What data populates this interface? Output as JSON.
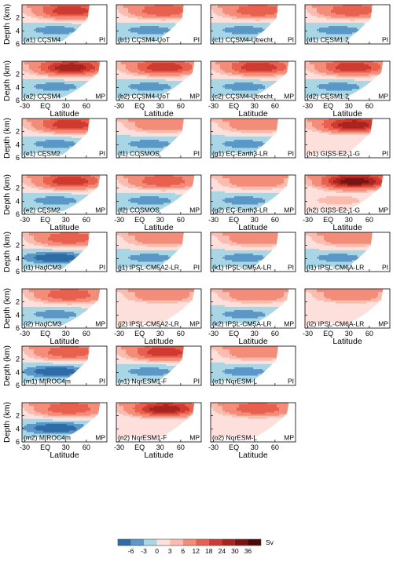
{
  "chart_data": {
    "type": "heatmap",
    "axis": {
      "ylabel": "Depth (km)",
      "xlabel": "Latitude",
      "xticks": [
        "-30",
        "EQ",
        "30",
        "60"
      ],
      "yticks": [
        "2",
        "4",
        "6"
      ],
      "xlim": [
        -34,
        90
      ],
      "ylim": [
        0,
        6
      ]
    },
    "colorbar": {
      "ticks": [
        "-6",
        "-3",
        "0",
        "3",
        "6",
        "12",
        "18",
        "24",
        "30",
        "36"
      ],
      "unit": "Sv",
      "colors": [
        "#2e6ca7",
        "#5b97c7",
        "#a9d6e5",
        "#fde0dc",
        "#fbbcb0",
        "#f48c7a",
        "#e8604e",
        "#cf3b30",
        "#a8241f",
        "#7a1414",
        "#4d0808"
      ]
    },
    "panel_rows": [
      {
        "panels": [
          {
            "label": "(a1) CCSM4",
            "tag": "PI",
            "peak": 24,
            "deep": -3,
            "maxLat": 65
          },
          {
            "label": "(b1) CCSM4-UoT",
            "tag": "PI",
            "peak": 18,
            "deep": -3,
            "maxLat": 65
          },
          {
            "label": "(c1) CCSM4-Utrecht",
            "tag": "PI",
            "peak": 18,
            "deep": -3,
            "maxLat": 65
          },
          {
            "label": "(d1) CESM1.2",
            "tag": "PI",
            "peak": 18,
            "deep": -3,
            "maxLat": 65
          }
        ]
      },
      {
        "panels": [
          {
            "label": "(a2) CCSM4",
            "tag": "MP",
            "peak": 30,
            "deep": -3,
            "maxLat": 80
          },
          {
            "label": "(b2) CCSM4-UoT",
            "tag": "MP",
            "peak": 24,
            "deep": -3,
            "maxLat": 80
          },
          {
            "label": "(c2) CCSM4-Utrecht",
            "tag": "MP",
            "peak": 24,
            "deep": -3,
            "maxLat": 80
          },
          {
            "label": "(d2) CESM1.2",
            "tag": "MP",
            "peak": 24,
            "deep": -3,
            "maxLat": 80
          }
        ]
      },
      {
        "panels": [
          {
            "label": "(e1) CESM2",
            "tag": "PI",
            "peak": 24,
            "deep": -3,
            "maxLat": 65
          },
          {
            "label": "(f1) COSMOS",
            "tag": "PI",
            "peak": 12,
            "deep": -3,
            "maxLat": 65
          },
          {
            "label": "(g1) EC-Earth3-LR",
            "tag": "PI",
            "peak": 12,
            "deep": -3,
            "maxLat": 65
          },
          {
            "label": "(h1) GISS-E2-1-G",
            "tag": "PI",
            "peak": 30,
            "deep": 0,
            "maxLat": 65
          }
        ]
      },
      {
        "panels": [
          {
            "label": "(e2) CESM2",
            "tag": "MP",
            "peak": 24,
            "deep": -3,
            "maxLat": 80
          },
          {
            "label": "(f2) COSMOS",
            "tag": "MP",
            "peak": 18,
            "deep": -3,
            "maxLat": 80
          },
          {
            "label": "(g2) EC-Earth3-LR",
            "tag": "MP",
            "peak": 12,
            "deep": -3,
            "maxLat": 80
          },
          {
            "label": "(h2) GISS-E2-1-G",
            "tag": "MP",
            "peak": 36,
            "deep": 3,
            "maxLat": 80
          }
        ]
      },
      {
        "panels": [
          {
            "label": "(i1) HadCM3",
            "tag": "PI",
            "peak": 18,
            "deep": -6,
            "maxLat": 65
          },
          {
            "label": "(j1) IPSL-CM5A2-LR",
            "tag": "PI",
            "peak": 12,
            "deep": -3,
            "maxLat": 65
          },
          {
            "label": "(k1) IPSL-CM5A-LR",
            "tag": "PI",
            "peak": 12,
            "deep": -3,
            "maxLat": 65
          },
          {
            "label": "(l1) IPSL-CM6A-LR",
            "tag": "PI",
            "peak": 12,
            "deep": -3,
            "maxLat": 65
          }
        ]
      },
      {
        "panels": [
          {
            "label": "(i2) HadCM3",
            "tag": "MP",
            "peak": 18,
            "deep": -3,
            "maxLat": 80
          },
          {
            "label": "(j2) IPSL-CM5A2-LR",
            "tag": "MP",
            "peak": 12,
            "deep": 0,
            "maxLat": 80
          },
          {
            "label": "(k2) IPSL-CM5A-LR",
            "tag": "MP",
            "peak": 12,
            "deep": -3,
            "maxLat": 80
          },
          {
            "label": "(l2) IPSL-CM6A-LR",
            "tag": "MP",
            "peak": 12,
            "deep": 0,
            "maxLat": 80
          }
        ]
      },
      {
        "panels": [
          {
            "label": "(m1) MIROC4m",
            "tag": "PI",
            "peak": 18,
            "deep": -6,
            "maxLat": 65
          },
          {
            "label": "(n1) NorESM1-F",
            "tag": "PI",
            "peak": 24,
            "deep": -3,
            "maxLat": 65
          },
          {
            "label": "(o1) NorESM-L",
            "tag": "PI",
            "peak": 12,
            "deep": -3,
            "maxLat": 65
          }
        ]
      },
      {
        "panels": [
          {
            "label": "(m2) MIROC4m",
            "tag": "MP",
            "peak": 18,
            "deep": -6,
            "maxLat": 80
          },
          {
            "label": "(n2) NorESM1-F",
            "tag": "MP",
            "peak": 30,
            "deep": 0,
            "maxLat": 80
          },
          {
            "label": "(o2) NorESM-L",
            "tag": "MP",
            "peak": 18,
            "deep": 0,
            "maxLat": 80
          }
        ]
      }
    ]
  }
}
